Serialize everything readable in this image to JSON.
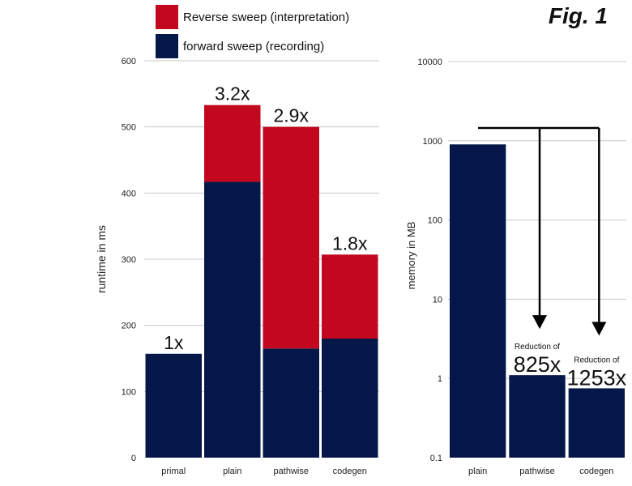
{
  "figure": {
    "label": "Fig. 1"
  },
  "colors": {
    "reverse": "#c2071f",
    "forward": "#041748",
    "grid": "#c8c8c8",
    "text": "#222222",
    "arrow": "#000000"
  },
  "legend": [
    {
      "name": "Reverse sweep (interpretation)",
      "color": "#c2071f"
    },
    {
      "name": "forward sweep (recording)",
      "color": "#041748"
    }
  ],
  "chart_data": [
    {
      "type": "bar",
      "stacked": true,
      "title": "",
      "xlabel": "",
      "ylabel": "runtime in ms",
      "ylim": [
        0,
        600
      ],
      "yticks": [
        0,
        100,
        200,
        300,
        400,
        500,
        600
      ],
      "categories": [
        "primal",
        "plain",
        "pathwise",
        "codegen"
      ],
      "series": [
        {
          "name": "forward sweep (recording)",
          "values": [
            157,
            417,
            165,
            180
          ]
        },
        {
          "name": "Reverse sweep (interpretation)",
          "values": [
            0,
            116,
            335,
            127
          ]
        }
      ],
      "bar_labels": [
        "1x",
        "3.2x",
        "2.9x",
        "1.8x"
      ],
      "legend": "top"
    },
    {
      "type": "bar",
      "yscale": "log",
      "title": "",
      "xlabel": "",
      "ylabel": "memory in MB",
      "ylim": [
        0.1,
        10000
      ],
      "yticks": [
        "0.1",
        "1",
        "10",
        "100",
        "1000",
        "10000"
      ],
      "categories": [
        "plain",
        "pathwise",
        "codegen"
      ],
      "values": [
        900,
        1.1,
        0.75
      ],
      "annotations": [
        {
          "category": "pathwise",
          "prefix": "Reduction of",
          "value": "825x"
        },
        {
          "category": "codegen",
          "prefix": "Reduction of",
          "value": "1253x"
        }
      ]
    }
  ]
}
